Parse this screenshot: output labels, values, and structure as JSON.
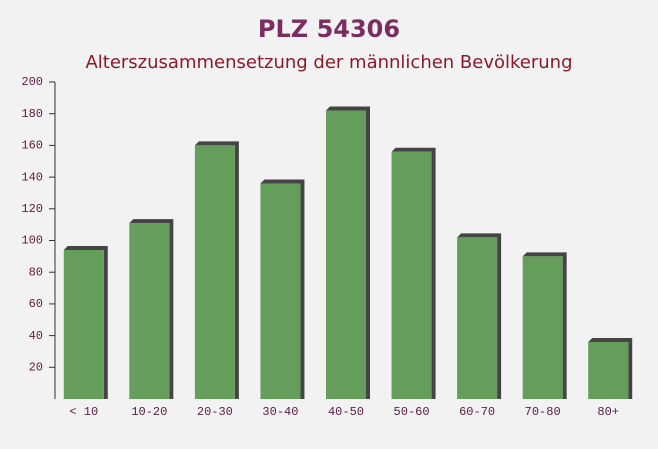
{
  "chart_data": {
    "type": "bar",
    "title": "PLZ 54306",
    "subtitle": "Alterszusammensetzung der männlichen Bevölkerung",
    "categories": [
      "< 10",
      "10-20",
      "20-30",
      "30-40",
      "40-50",
      "50-60",
      "60-70",
      "70-80",
      "80+"
    ],
    "values": [
      94,
      111,
      160,
      136,
      182,
      156,
      102,
      90,
      36
    ],
    "color": "#659e5a",
    "ylim": [
      0,
      200
    ],
    "yticks": [
      20,
      40,
      60,
      80,
      100,
      120,
      140,
      160,
      180,
      200
    ]
  }
}
